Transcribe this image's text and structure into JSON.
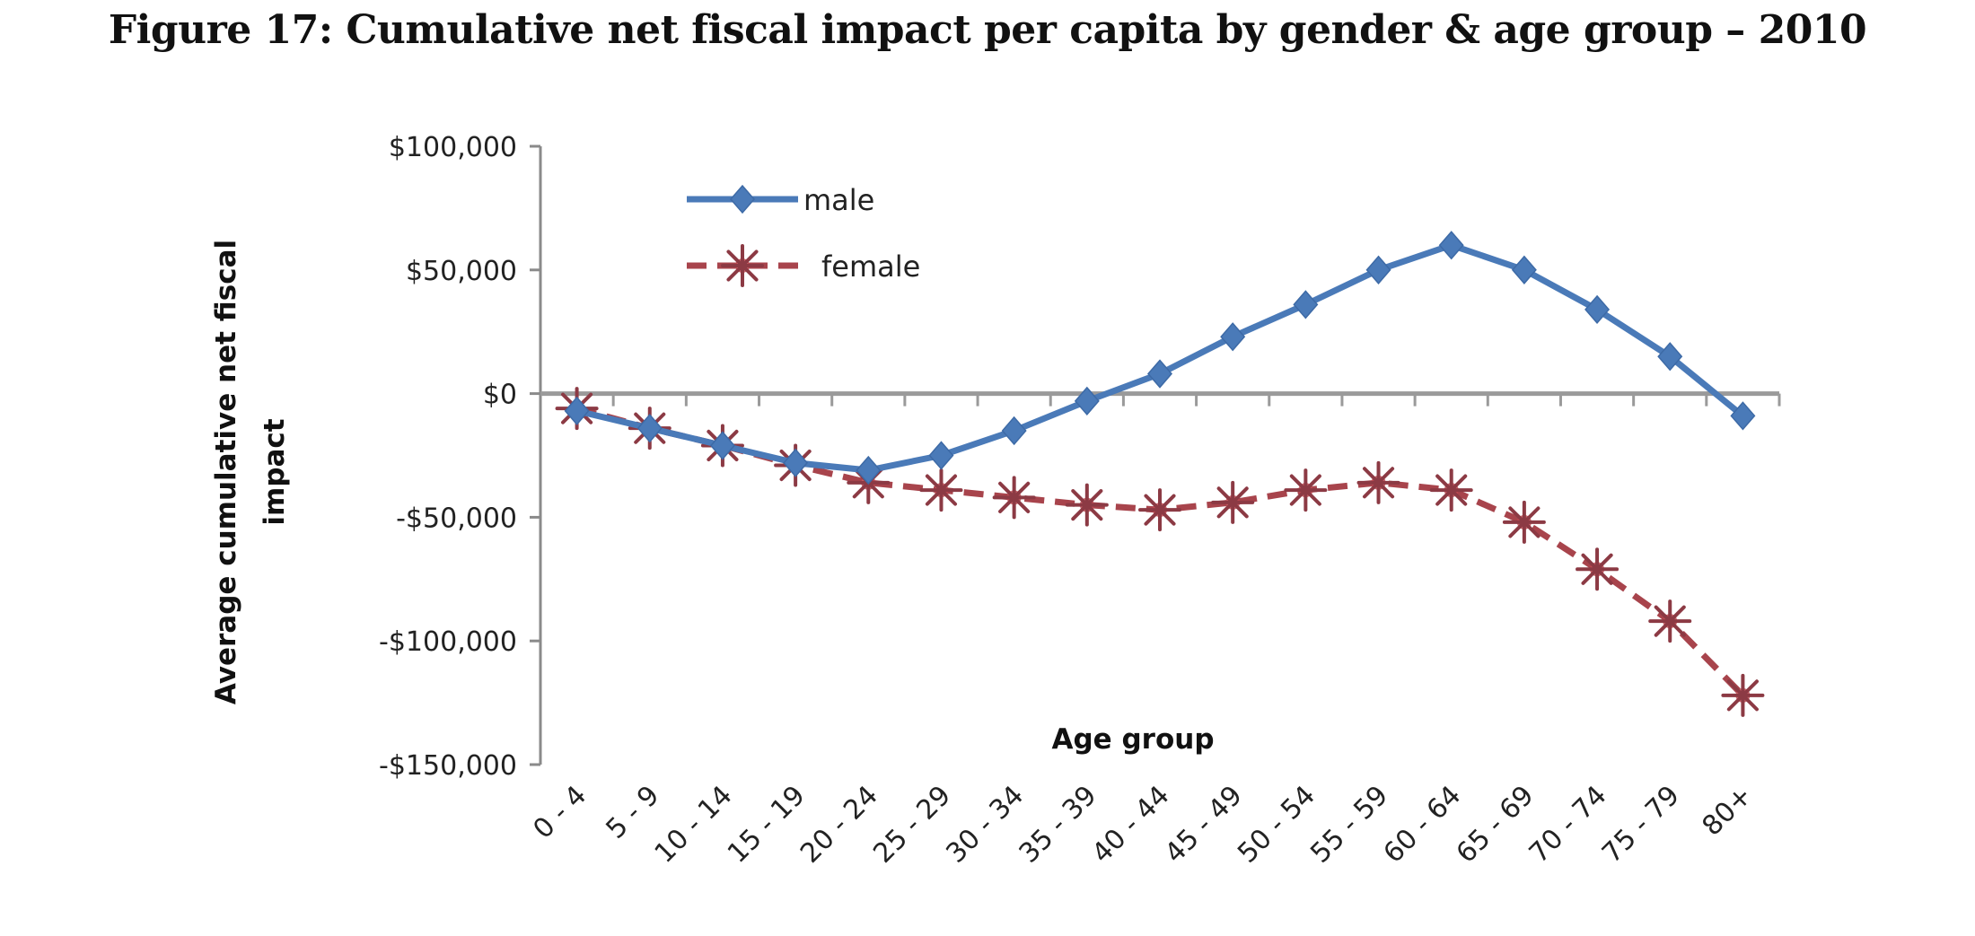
{
  "chart_data": {
    "type": "line",
    "title": "Figure 17: Cumulative net fiscal impact per capita by gender & age group – 2010",
    "xlabel": "Age group",
    "ylabel": "Average cumulative net fiscal impact",
    "ylabel_lines": [
      "Average cumulative net fiscal",
      "impact"
    ],
    "ylim": [
      -150000,
      100000
    ],
    "yticks": [
      100000,
      50000,
      0,
      -50000,
      -100000,
      -150000
    ],
    "ytick_labels": [
      "$100,000",
      "$50,000",
      "$0",
      "-$50,000",
      "-$100,000",
      "-$150,000"
    ],
    "grid": false,
    "legend_position": "top-left",
    "categories": [
      "0 - 4",
      "5 - 9",
      "10 - 14",
      "15 - 19",
      "20 - 24",
      "25 - 29",
      "30 - 34",
      "35 - 39",
      "40 - 44",
      "45 - 49",
      "50 - 54",
      "55 - 59",
      "60 - 64",
      "65 - 69",
      "70 - 74",
      "75 - 79",
      "80+"
    ],
    "series": [
      {
        "name": "male",
        "color": "#4a7ab8",
        "line_style": "solid",
        "marker": "diamond",
        "values": [
          -7000,
          -14000,
          -21000,
          -28000,
          -31000,
          -25000,
          -15000,
          -3000,
          8000,
          23000,
          36000,
          50000,
          60000,
          50000,
          34000,
          15000,
          -9000
        ]
      },
      {
        "name": "female",
        "color": "#b0464c",
        "line_style": "dashed",
        "marker": "star",
        "values": [
          -6000,
          -14000,
          -21000,
          -29000,
          -36000,
          -39000,
          -42000,
          -45000,
          -47000,
          -44000,
          -39000,
          -36000,
          -39000,
          -52000,
          -71000,
          -92000,
          -122000
        ]
      }
    ]
  }
}
